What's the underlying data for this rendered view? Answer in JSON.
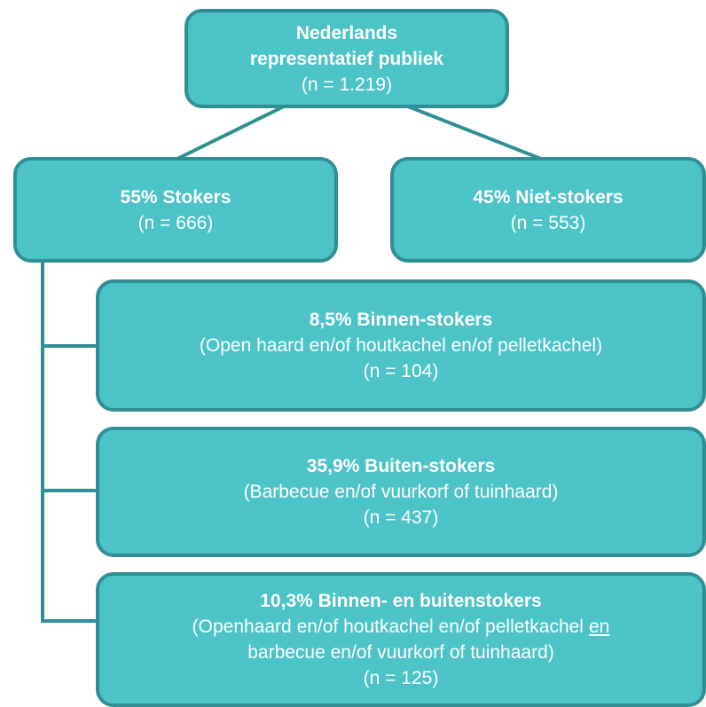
{
  "nodes": [
    {
      "title": [
        "Nederlands",
        "representatief publiek"
      ],
      "lines": [
        "(n = 1.219)"
      ]
    },
    {
      "title": [
        "55% Stokers"
      ],
      "lines": [
        "(n = 666)"
      ]
    },
    {
      "title": [
        "45% Niet-stokers"
      ],
      "lines": [
        "(n = 553)"
      ]
    },
    {
      "title": [
        "8,5% Binnen-stokers"
      ],
      "lines": [
        "(Open haard en/of houtkachel en/of pelletkachel)",
        "(n = 104)"
      ]
    },
    {
      "title": [
        "35,9% Buiten-stokers"
      ],
      "lines": [
        "(Barbecue en/of vuurkorf of tuinhaard)",
        "(n = 437)"
      ]
    },
    {
      "title": [
        "10,3% Binnen- en buitenstokers"
      ],
      "lines": [
        [
          "(Openhaard en/of houtkachel en/of pelletkachel",
          "en"
        ],
        "barbecue en/of vuurkorf of tuinhaard)",
        "(n = 125)"
      ]
    }
  ]
}
